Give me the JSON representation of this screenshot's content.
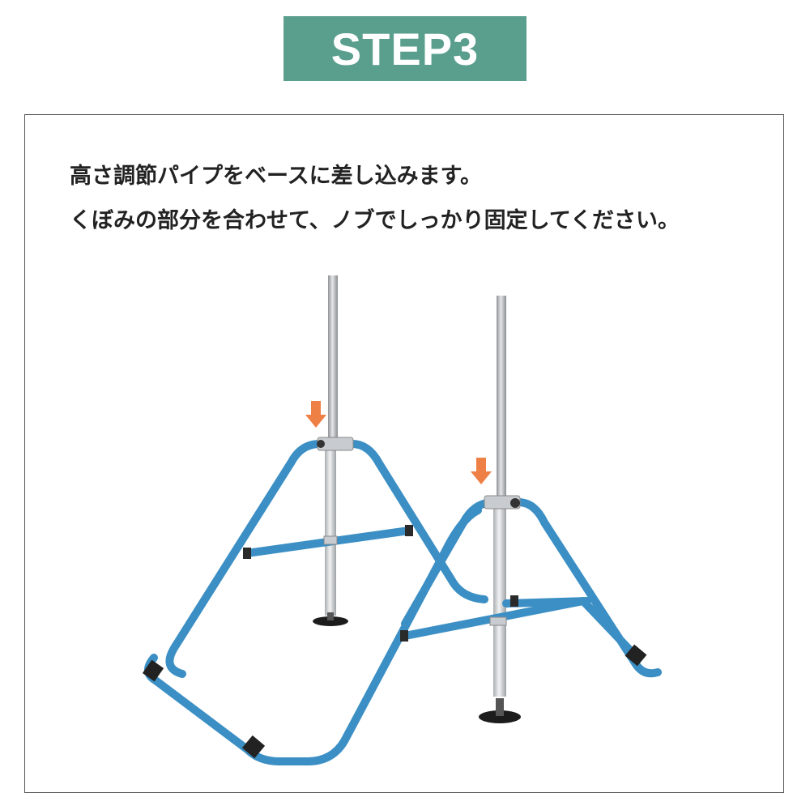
{
  "header": {
    "step_label": "STEP3"
  },
  "instructions": {
    "line1": "高さ調節パイプをベースに差し込みます。",
    "line2": "くぼみの部分を合わせて、ノブでしっかり固定してください。"
  },
  "colors": {
    "badge": "#5a9f8e",
    "frame_tube": "#3b8fc4",
    "arrow": "#ee7f45",
    "pole": "#b9bcbf"
  }
}
